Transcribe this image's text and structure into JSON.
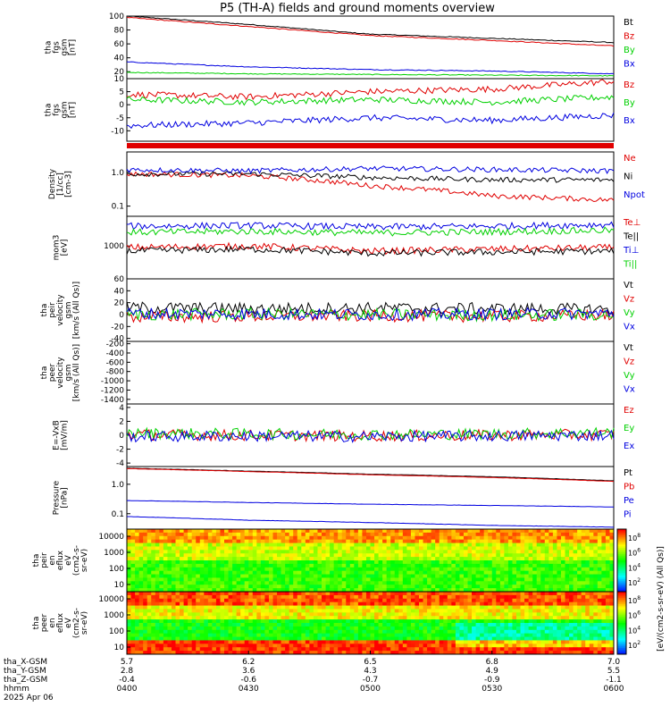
{
  "title": "P5 (TH-A) fields and ground moments overview",
  "colors": {
    "black": "#000000",
    "red": "#e00000",
    "green": "#00d000",
    "blue": "#0000e0"
  },
  "time_axis": {
    "hhmm": [
      "0400",
      "0430",
      "0500",
      "0530",
      "0600"
    ],
    "rows": [
      {
        "label": "tha_X-GSM",
        "values": [
          "5.7",
          "6.2",
          "6.5",
          "6.8",
          "7.0"
        ]
      },
      {
        "label": "tha_Y-GSM",
        "values": [
          "2.8",
          "3.6",
          "4.3",
          "4.9",
          "5.5"
        ]
      },
      {
        "label": "tha_Z-GSM",
        "values": [
          "-0.4",
          "-0.6",
          "-0.7",
          "-0.9",
          "-1.1"
        ]
      },
      {
        "label": "hhmm",
        "values": [
          "0400",
          "0430",
          "0500",
          "0530",
          "0600"
        ]
      }
    ],
    "date": "2025 Apr 06"
  },
  "chart_data": [
    {
      "id": "fgs_gsm_total",
      "type": "line",
      "ylabel": [
        "tha",
        "fgs",
        "gsm",
        "[nT]"
      ],
      "yticks": [
        "100",
        "80",
        "60",
        "40",
        "20"
      ],
      "legend": [
        "Bt",
        "Bz",
        "By",
        "Bx"
      ],
      "ylim": [
        10,
        100
      ],
      "series": [
        {
          "name": "Bt",
          "x": [
            "0400",
            "0430",
            "0500",
            "0530",
            "0600"
          ],
          "values": [
            100,
            88,
            74,
            68,
            62
          ]
        },
        {
          "name": "Bz",
          "x": [
            "0400",
            "0430",
            "0500",
            "0530",
            "0600"
          ],
          "values": [
            98,
            85,
            72,
            65,
            57
          ]
        },
        {
          "name": "By",
          "x": [
            "0400",
            "0430",
            "0500",
            "0530",
            "0600"
          ],
          "values": [
            19,
            17,
            16,
            15,
            14
          ]
        },
        {
          "name": "Bx",
          "x": [
            "0400",
            "0430",
            "0500",
            "0530",
            "0600"
          ],
          "values": [
            34,
            27,
            23,
            21,
            17
          ]
        }
      ]
    },
    {
      "id": "fgs_gsm_detrended",
      "type": "line",
      "ylabel": [
        "tha",
        "fgs",
        "gsm",
        "[nT]"
      ],
      "yticks": [
        "10",
        "5",
        "0",
        "-5",
        "-10"
      ],
      "legend": [
        "Bz",
        "By",
        "Bx"
      ],
      "ylim": [
        -14,
        10
      ],
      "series": [
        {
          "name": "Bz",
          "x": [
            "0400",
            "0430",
            "0500",
            "0530",
            "0600"
          ],
          "values": [
            4,
            3,
            5,
            6,
            9
          ]
        },
        {
          "name": "By",
          "x": [
            "0400",
            "0430",
            "0500",
            "0530",
            "0600"
          ],
          "values": [
            2,
            1,
            2,
            1,
            3
          ]
        },
        {
          "name": "Bx",
          "x": [
            "0400",
            "0430",
            "0500",
            "0530",
            "0600"
          ],
          "values": [
            -8,
            -7,
            -5,
            -6,
            -4
          ]
        }
      ]
    },
    {
      "id": "density",
      "type": "line",
      "ylabel": [
        "Density",
        "[1/cc]",
        "[cm-3]"
      ],
      "yticks": [
        "1.0",
        "0.1"
      ],
      "legend": [
        "Ne",
        "Ni",
        "Npot"
      ],
      "ylim": [
        0.05,
        4
      ],
      "scale": "log",
      "series": [
        {
          "name": "Ne",
          "x": [
            "0400",
            "0430",
            "0500",
            "0530",
            "0600"
          ],
          "values": [
            0.9,
            0.8,
            0.4,
            0.2,
            0.15
          ]
        },
        {
          "name": "Ni",
          "x": [
            "0400",
            "0430",
            "0500",
            "0530",
            "0600"
          ],
          "values": [
            0.9,
            0.9,
            0.7,
            0.6,
            0.6
          ]
        },
        {
          "name": "Npot",
          "x": [
            "0400",
            "0430",
            "0500",
            "0530",
            "0600"
          ],
          "values": [
            1.2,
            1.1,
            1.3,
            1.2,
            1.1
          ]
        }
      ]
    },
    {
      "id": "temperature",
      "type": "line",
      "ylabel": [
        "mom3",
        "[eV]"
      ],
      "yticks": [
        "1000"
      ],
      "legend": [
        "Te⊥",
        "Te||",
        "Ti⊥",
        "Ti||"
      ],
      "ylim": [
        100,
        8000
      ],
      "scale": "log",
      "series": [
        {
          "name": "Te⊥",
          "x": [
            "0400",
            "0430",
            "0500",
            "0530",
            "0600"
          ],
          "values": [
            900,
            1000,
            700,
            800,
            900
          ]
        },
        {
          "name": "Te||",
          "x": [
            "0400",
            "0430",
            "0500",
            "0530",
            "0600"
          ],
          "values": [
            700,
            800,
            600,
            650,
            700
          ]
        },
        {
          "name": "Ti⊥",
          "x": [
            "0400",
            "0430",
            "0500",
            "0530",
            "0600"
          ],
          "values": [
            4000,
            4200,
            3800,
            4000,
            4500
          ]
        },
        {
          "name": "Ti||",
          "x": [
            "0400",
            "0430",
            "0500",
            "0530",
            "0600"
          ],
          "values": [
            2600,
            2800,
            2500,
            2700,
            3000
          ]
        }
      ]
    },
    {
      "id": "peir_velocity",
      "type": "line",
      "ylabel": [
        "tha",
        "peir",
        "velocity",
        "gsm",
        "[km/s (All Qs)]"
      ],
      "yticks": [
        "60",
        "40",
        "20",
        "0",
        "-20",
        "-40"
      ],
      "legend": [
        "Vt",
        "Vz",
        "Vy",
        "Vx"
      ],
      "ylim": [
        -45,
        60
      ],
      "series": [
        {
          "name": "Vt",
          "x": [
            "0400",
            "0430",
            "0500",
            "0530",
            "0600"
          ],
          "values": [
            12,
            10,
            11,
            10,
            9
          ]
        },
        {
          "name": "Vz",
          "x": [
            "0400",
            "0430",
            "0500",
            "0530",
            "0600"
          ],
          "values": [
            -4,
            -3,
            -2,
            -3,
            -1
          ]
        },
        {
          "name": "Vy",
          "x": [
            "0400",
            "0430",
            "0500",
            "0530",
            "0600"
          ],
          "values": [
            0,
            1,
            0,
            -1,
            0
          ]
        },
        {
          "name": "Vx",
          "x": [
            "0400",
            "0430",
            "0500",
            "0530",
            "0600"
          ],
          "values": [
            2,
            1,
            0,
            1,
            2
          ]
        }
      ]
    },
    {
      "id": "peer_velocity",
      "type": "line",
      "ylabel": [
        "tha",
        "peer",
        "velocity",
        "gsm",
        "[km/s (All Qs)]"
      ],
      "yticks": [
        "-200",
        "-400",
        "-600",
        "-800",
        "-1000",
        "-1200",
        "-1400"
      ],
      "legend": [
        "Vt",
        "Vz",
        "Vy",
        "Vx"
      ],
      "ylim": [
        -1500,
        -150
      ],
      "series": []
    },
    {
      "id": "e_vxb",
      "type": "line",
      "ylabel": [
        "E=-VxB",
        "[mV/m]"
      ],
      "yticks": [
        "4",
        "2",
        "0",
        "-2",
        "-4"
      ],
      "legend": [
        "Ez",
        "Ey",
        "Ex"
      ],
      "ylim": [
        -4.5,
        4.5
      ],
      "series": [
        {
          "name": "Ez",
          "x": [
            "0400",
            "0430",
            "0500",
            "0530",
            "0600"
          ],
          "values": [
            0.1,
            0.0,
            -0.1,
            0.0,
            0.1
          ]
        },
        {
          "name": "Ey",
          "x": [
            "0400",
            "0430",
            "0500",
            "0530",
            "0600"
          ],
          "values": [
            0.3,
            0.2,
            0.1,
            0.2,
            0.4
          ]
        },
        {
          "name": "Ex",
          "x": [
            "0400",
            "0430",
            "0500",
            "0530",
            "0600"
          ],
          "values": [
            -0.2,
            -0.1,
            -0.2,
            -0.1,
            0.0
          ]
        }
      ]
    },
    {
      "id": "pressure",
      "type": "line",
      "ylabel": [
        "Pressure",
        "[nPa]"
      ],
      "yticks": [
        "1.0",
        "0.1"
      ],
      "legend": [
        "Pt",
        "Pb",
        "Pe",
        "Pi"
      ],
      "ylim": [
        0.03,
        4
      ],
      "scale": "log",
      "series": [
        {
          "name": "Pt",
          "x": [
            "0400",
            "0430",
            "0500",
            "0530",
            "0600"
          ],
          "values": [
            3.5,
            2.8,
            2.2,
            1.8,
            1.3
          ]
        },
        {
          "name": "Pb",
          "x": [
            "0400",
            "0430",
            "0500",
            "0530",
            "0600"
          ],
          "values": [
            3.4,
            2.7,
            2.1,
            1.7,
            1.25
          ]
        },
        {
          "name": "Pe",
          "x": [
            "0400",
            "0430",
            "0500",
            "0530",
            "0600"
          ],
          "values": [
            0.28,
            0.24,
            0.21,
            0.19,
            0.17
          ]
        },
        {
          "name": "Pi",
          "x": [
            "0400",
            "0430",
            "0500",
            "0530",
            "0600"
          ],
          "values": [
            0.08,
            0.06,
            0.05,
            0.04,
            0.035
          ]
        }
      ]
    },
    {
      "id": "peir_spectrogram",
      "type": "heatmap",
      "ylabel": [
        "tha",
        "peir",
        "en",
        "eflux",
        "eV",
        "(cm2-s-",
        "sr-eV)"
      ],
      "yticks": [
        "10000",
        "1000",
        "100",
        "10"
      ],
      "scale": "log",
      "colorbar_ticks": [
        "10^8",
        "10^6",
        "10^4",
        "10^2"
      ]
    },
    {
      "id": "peer_spectrogram",
      "type": "heatmap",
      "ylabel": [
        "tha",
        "peer",
        "en",
        "eflux",
        "eV",
        "(cm2-s-",
        "sr-eV)"
      ],
      "yticks": [
        "10000",
        "1000",
        "100",
        "10"
      ],
      "scale": "log",
      "colorbar_ticks": [
        "10^8",
        "10^6",
        "10^4",
        "10^2"
      ]
    }
  ],
  "colorbar_label": "[eV/(cm2-s-sr-eV) (All Qs)]"
}
